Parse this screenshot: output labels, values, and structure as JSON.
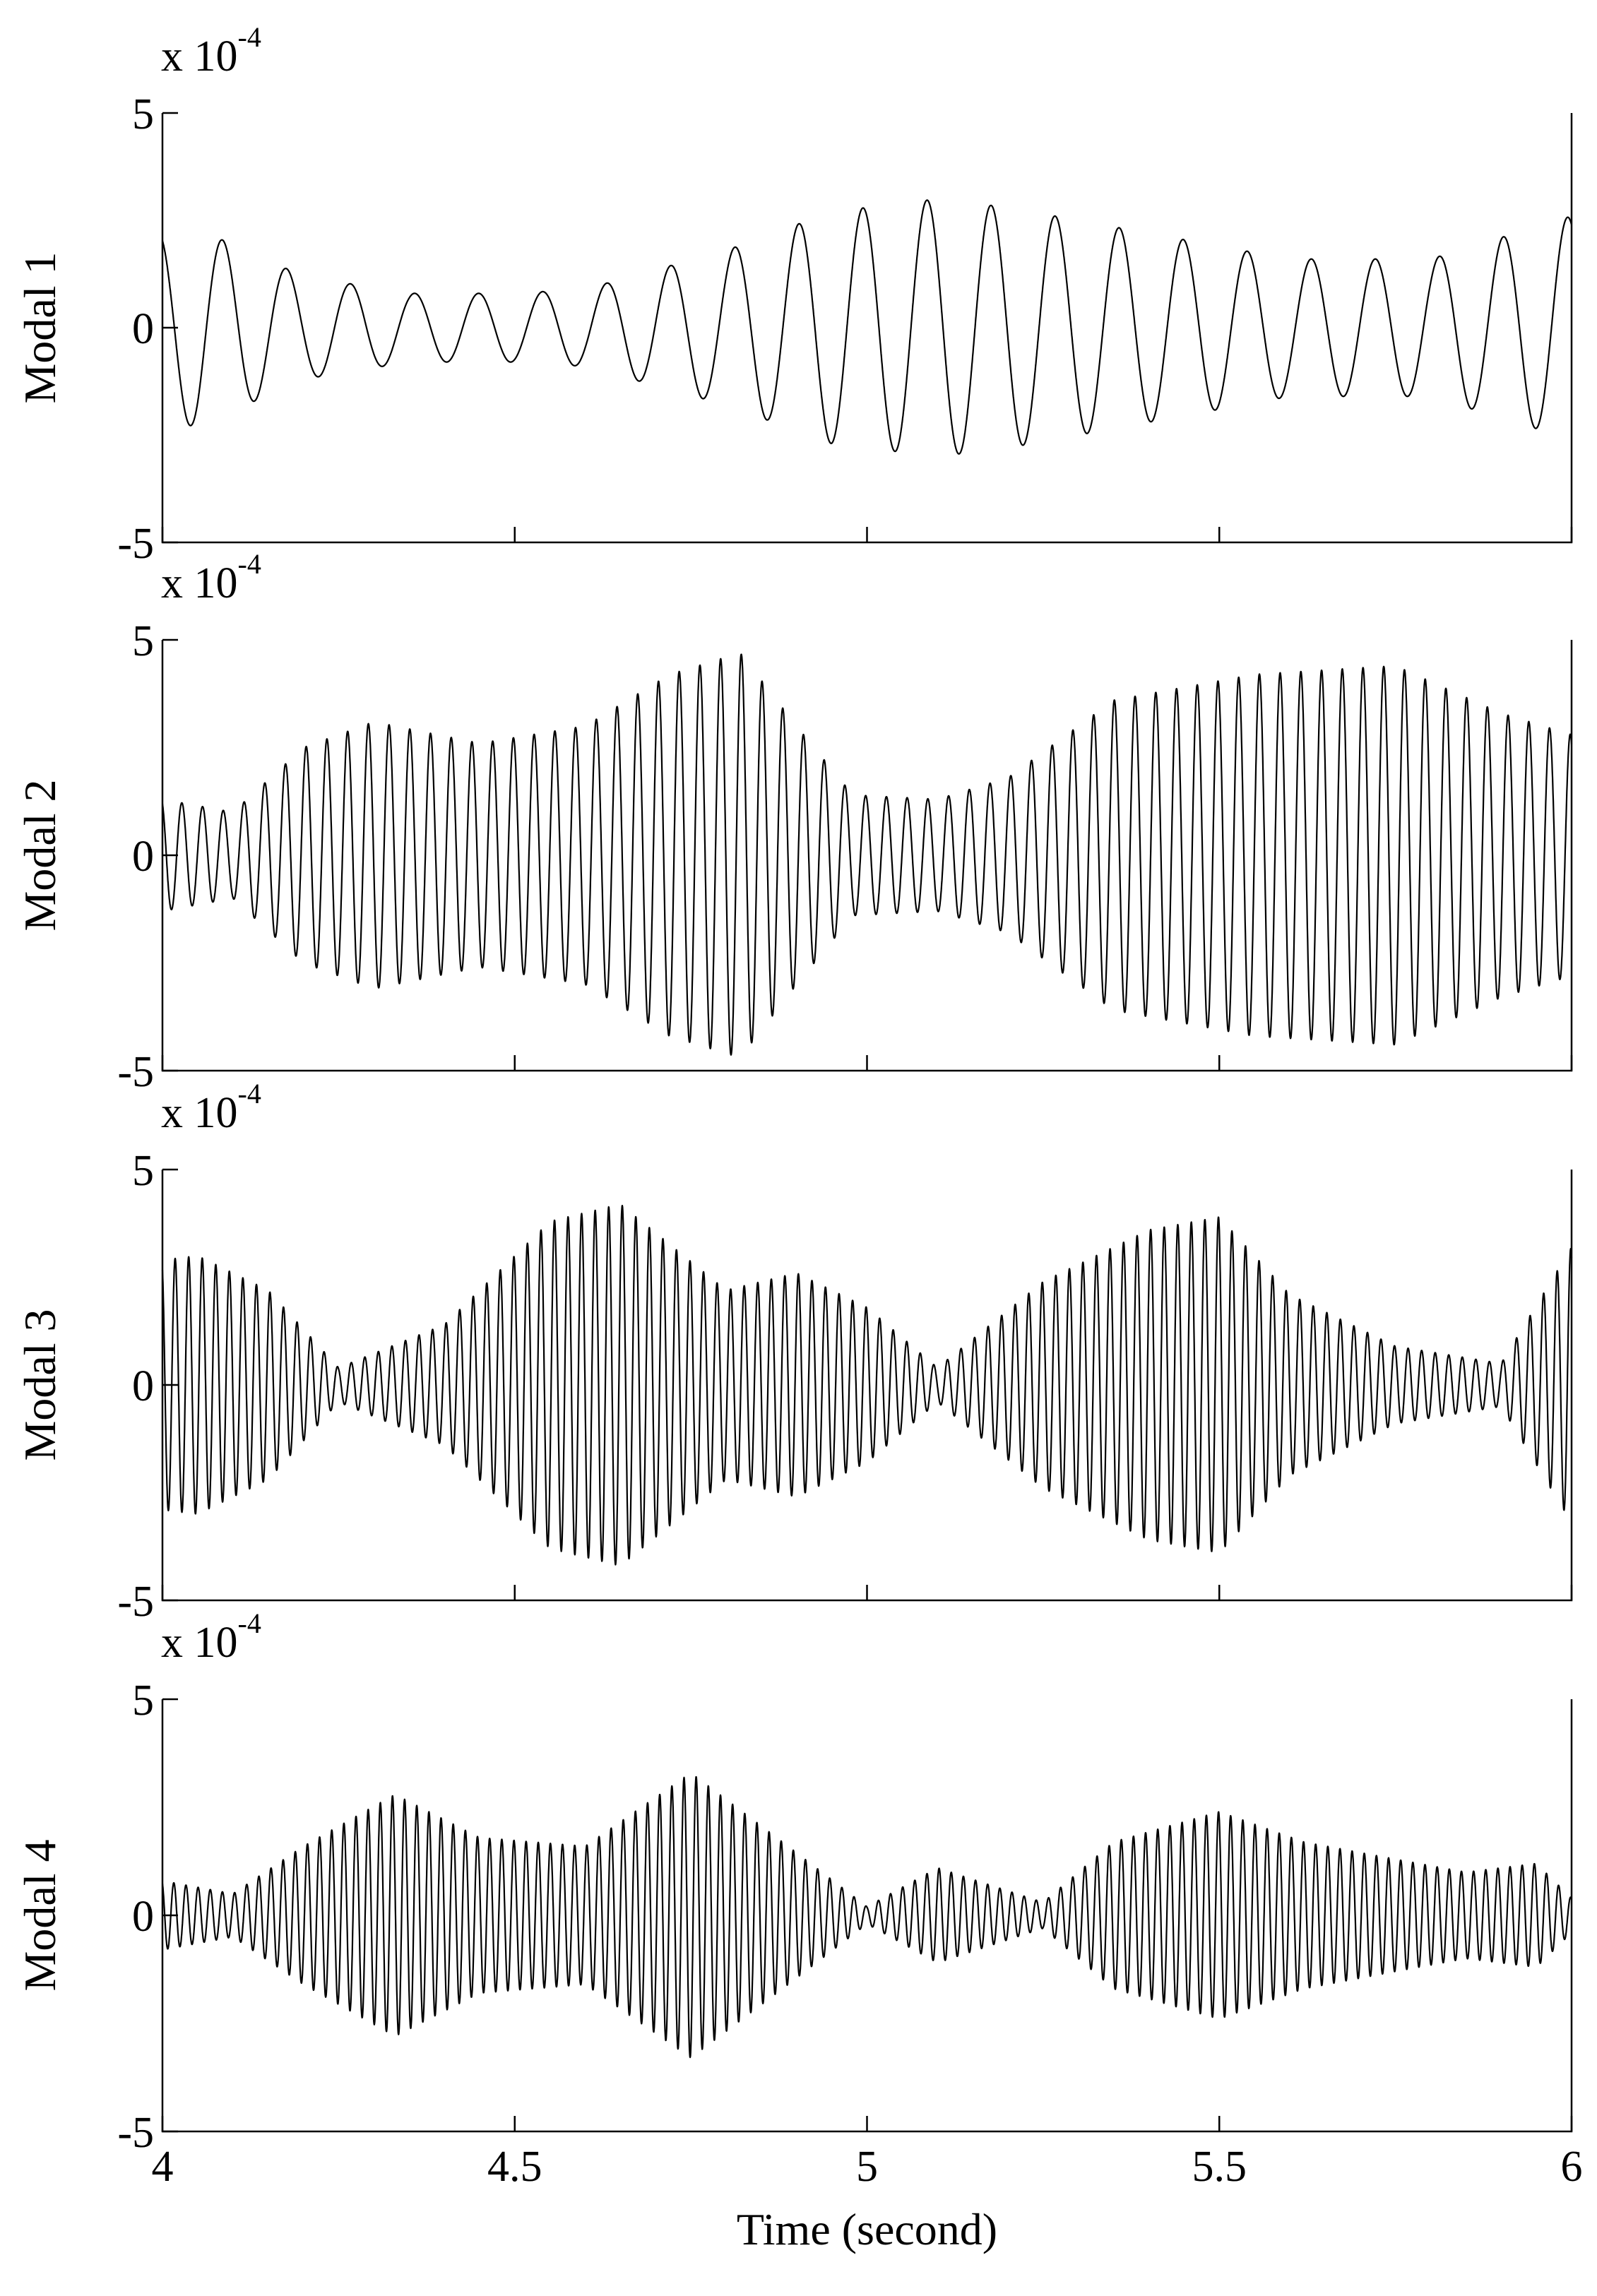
{
  "colors": {
    "line": "#000000",
    "background": "#ffffff",
    "axis": "#000000"
  },
  "chart_data": [
    {
      "type": "line",
      "title": "",
      "ylabel": "Modal 1",
      "xlabel": "",
      "xlim": [
        4,
        6
      ],
      "ylim": [
        -5,
        5
      ],
      "y_multiplier_base": "x 10",
      "y_multiplier_exponent": "-4",
      "xticks": [
        4,
        4.5,
        5,
        5.5,
        6
      ],
      "xtick_labels_shown": false,
      "yticks": [
        -5,
        0,
        5
      ],
      "ytick_labels": [
        "-5",
        "0",
        "5"
      ],
      "grid": false,
      "series": [
        {
          "frequency_hz": 11,
          "envelope_t": [
            4.0,
            4.05,
            4.2,
            4.35,
            4.5,
            4.6,
            4.8,
            4.95,
            5.1,
            5.2,
            5.4,
            5.6,
            5.8,
            5.9,
            6.0
          ],
          "envelope_amp": [
            2.2,
            2.3,
            1.2,
            0.8,
            0.8,
            0.9,
            1.8,
            2.7,
            3.0,
            2.8,
            2.2,
            1.6,
            1.6,
            2.1,
            2.6
          ]
        }
      ]
    },
    {
      "type": "line",
      "title": "",
      "ylabel": "Modal 2",
      "xlabel": "",
      "xlim": [
        4,
        6
      ],
      "ylim": [
        -5,
        5
      ],
      "y_multiplier_base": "x 10",
      "y_multiplier_exponent": "-4",
      "xticks": [
        4,
        4.5,
        5,
        5.5,
        6
      ],
      "xtick_labels_shown": false,
      "yticks": [
        -5,
        0,
        5
      ],
      "ytick_labels": [
        "-5",
        "0",
        "5"
      ],
      "grid": false,
      "series": [
        {
          "frequency_hz": 34,
          "envelope_t": [
            4.0,
            4.1,
            4.2,
            4.3,
            4.45,
            4.6,
            4.72,
            4.82,
            4.9,
            4.98,
            5.1,
            5.2,
            5.35,
            5.55,
            5.75,
            5.9,
            6.0
          ],
          "envelope_amp": [
            1.3,
            1.0,
            2.5,
            3.1,
            2.6,
            3.0,
            4.2,
            4.7,
            3.0,
            1.4,
            1.3,
            1.8,
            3.6,
            4.2,
            4.4,
            3.3,
            2.8
          ]
        }
      ]
    },
    {
      "type": "line",
      "title": "",
      "ylabel": "Modal 3",
      "xlabel": "",
      "xlim": [
        4,
        6
      ],
      "ylim": [
        -5,
        5
      ],
      "y_multiplier_base": "x 10",
      "y_multiplier_exponent": "-4",
      "xticks": [
        4,
        4.5,
        5,
        5.5,
        6
      ],
      "xtick_labels_shown": false,
      "yticks": [
        -5,
        0,
        5
      ],
      "ytick_labels": [
        "-5",
        "0",
        "5"
      ],
      "grid": false,
      "series": [
        {
          "frequency_hz": 52,
          "envelope_t": [
            4.0,
            4.05,
            4.15,
            4.25,
            4.4,
            4.55,
            4.65,
            4.8,
            4.9,
            5.0,
            5.1,
            5.25,
            5.4,
            5.5,
            5.6,
            5.75,
            5.9,
            6.0
          ],
          "envelope_amp": [
            2.9,
            3.0,
            2.2,
            0.4,
            1.4,
            3.8,
            4.2,
            2.2,
            2.6,
            1.8,
            0.4,
            2.4,
            3.6,
            3.9,
            2.1,
            0.9,
            0.5,
            3.2
          ]
        }
      ]
    },
    {
      "type": "line",
      "title": "",
      "ylabel": "Modal 4",
      "xlabel": "Time (second)",
      "xlim": [
        4,
        6
      ],
      "ylim": [
        -5,
        5
      ],
      "y_multiplier_base": "x 10",
      "y_multiplier_exponent": "-4",
      "xticks": [
        4,
        4.5,
        5,
        5.5,
        6
      ],
      "xtick_labels": [
        "4",
        "4.5",
        "5",
        "5.5",
        "6"
      ],
      "xtick_labels_shown": true,
      "yticks": [
        -5,
        0,
        5
      ],
      "ytick_labels": [
        "-5",
        "0",
        "5"
      ],
      "grid": false,
      "series": [
        {
          "frequency_hz": 58,
          "envelope_t": [
            4.0,
            4.1,
            4.2,
            4.33,
            4.45,
            4.6,
            4.75,
            4.88,
            5.0,
            5.1,
            5.25,
            5.35,
            5.5,
            5.62,
            5.75,
            5.85,
            5.95,
            6.0
          ],
          "envelope_amp": [
            0.8,
            0.5,
            1.6,
            2.8,
            1.8,
            1.6,
            3.3,
            1.7,
            0.2,
            1.1,
            0.3,
            1.7,
            2.4,
            1.7,
            1.3,
            1.0,
            1.2,
            0.4
          ]
        }
      ]
    }
  ]
}
